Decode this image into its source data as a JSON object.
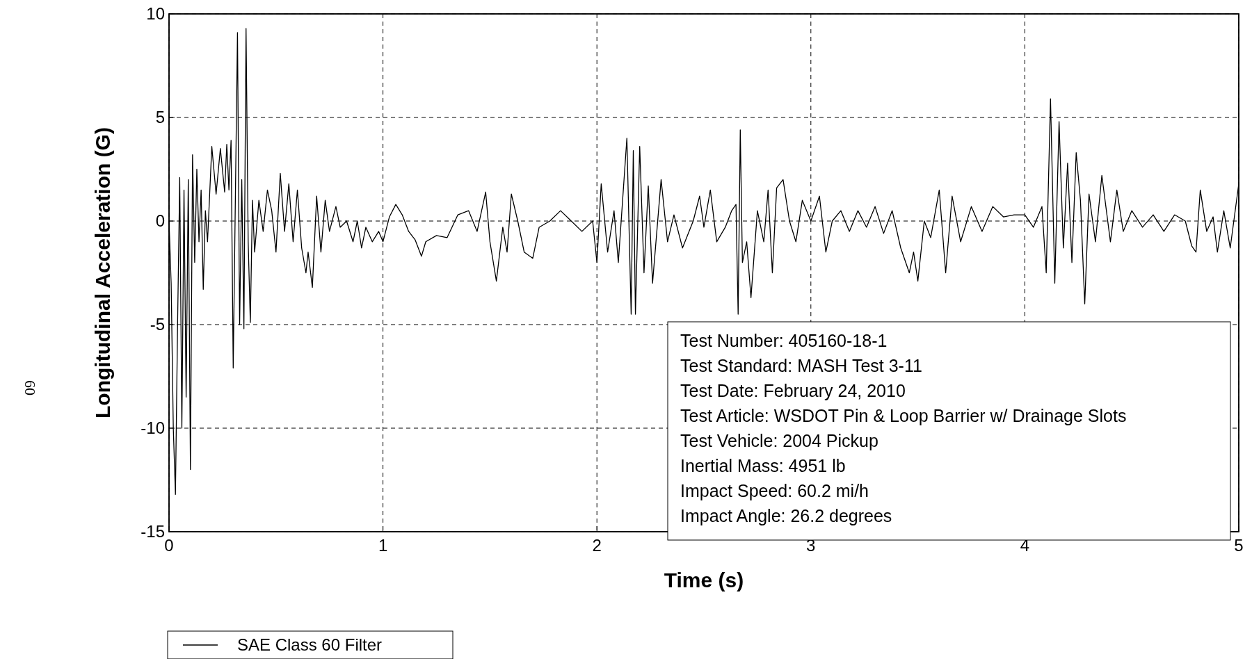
{
  "chart_data": {
    "type": "line",
    "xlabel": "Time (s)",
    "ylabel": "Longitudinal Acceleration (G)",
    "xlim": [
      0,
      5
    ],
    "xticks": [
      0,
      1,
      2,
      3,
      4,
      5
    ],
    "ylim": [
      -15,
      10
    ],
    "yticks": [
      -15,
      -10,
      -5,
      0,
      5,
      10
    ],
    "grid": true,
    "legend": "bottom",
    "line_style": "solid",
    "x": [
      0,
      0.01,
      0.02,
      0.03,
      0.04,
      0.05,
      0.06,
      0.07,
      0.08,
      0.09,
      0.1,
      0.11,
      0.12,
      0.13,
      0.14,
      0.15,
      0.16,
      0.17,
      0.18,
      0.2,
      0.22,
      0.24,
      0.26,
      0.27,
      0.28,
      0.29,
      0.3,
      0.31,
      0.32,
      0.33,
      0.34,
      0.35,
      0.36,
      0.37,
      0.38,
      0.39,
      0.4,
      0.42,
      0.44,
      0.46,
      0.48,
      0.5,
      0.52,
      0.54,
      0.56,
      0.58,
      0.6,
      0.62,
      0.64,
      0.65,
      0.67,
      0.69,
      0.71,
      0.73,
      0.75,
      0.78,
      0.8,
      0.83,
      0.86,
      0.88,
      0.9,
      0.92,
      0.95,
      0.98,
      1,
      1.03,
      1.06,
      1.09,
      1.12,
      1.15,
      1.18,
      1.2,
      1.25,
      1.3,
      1.35,
      1.4,
      1.44,
      1.48,
      1.5,
      1.53,
      1.56,
      1.58,
      1.6,
      1.63,
      1.66,
      1.7,
      1.73,
      1.78,
      1.83,
      1.88,
      1.93,
      1.98,
      2,
      2.02,
      2.05,
      2.08,
      2.1,
      2.12,
      2.14,
      2.16,
      2.17,
      2.18,
      2.2,
      2.22,
      2.24,
      2.26,
      2.3,
      2.33,
      2.36,
      2.4,
      2.45,
      2.48,
      2.5,
      2.53,
      2.56,
      2.6,
      2.63,
      2.65,
      2.66,
      2.67,
      2.68,
      2.7,
      2.72,
      2.75,
      2.78,
      2.8,
      2.82,
      2.84,
      2.87,
      2.9,
      2.93,
      2.96,
      3,
      3.04,
      3.07,
      3.1,
      3.14,
      3.18,
      3.22,
      3.26,
      3.3,
      3.34,
      3.38,
      3.42,
      3.46,
      3.48,
      3.5,
      3.53,
      3.56,
      3.6,
      3.63,
      3.66,
      3.7,
      3.75,
      3.8,
      3.85,
      3.9,
      3.95,
      4,
      4.04,
      4.08,
      4.1,
      4.12,
      4.14,
      4.16,
      4.18,
      4.2,
      4.22,
      4.24,
      4.26,
      4.28,
      4.3,
      4.33,
      4.36,
      4.4,
      4.43,
      4.46,
      4.5,
      4.55,
      4.6,
      4.65,
      4.7,
      4.75,
      4.78,
      4.8,
      4.82,
      4.85,
      4.88,
      4.9,
      4.93,
      4.96,
      5
    ],
    "series": [
      {
        "name": "SAE Class 60 Filter",
        "color": "#000000",
        "values": [
          0,
          -3,
          -10,
          -13.2,
          -5,
          2.1,
          -10,
          1.5,
          -8.5,
          2,
          -12,
          3.2,
          -2,
          2.5,
          -1,
          1.5,
          -3.3,
          0.5,
          -1,
          3.6,
          1.3,
          3.5,
          1.4,
          3.7,
          1.5,
          3.9,
          -7.1,
          1,
          9.1,
          -5,
          2,
          -5.2,
          9.3,
          -1,
          -4.9,
          1,
          -1.5,
          1,
          -0.5,
          1.5,
          0.5,
          -1.5,
          2.3,
          -0.5,
          1.8,
          -1,
          1.5,
          -1.3,
          -2.5,
          -1.5,
          -3.2,
          1.2,
          -1.5,
          1,
          -0.5,
          0.7,
          -0.3,
          0,
          -1,
          0,
          -1.3,
          -0.3,
          -1,
          -0.5,
          -1,
          0.2,
          0.8,
          0.3,
          -0.5,
          -0.9,
          -1.7,
          -1,
          -0.7,
          -0.8,
          0.3,
          0.5,
          -0.5,
          1.4,
          -1,
          -2.9,
          -0.3,
          -1.5,
          1.3,
          0,
          -1.5,
          -1.8,
          -0.3,
          0,
          0.5,
          0,
          -0.5,
          0,
          -2,
          1.8,
          -1.5,
          0.5,
          -2,
          1,
          4,
          -4.5,
          3.4,
          -4.5,
          3.6,
          -2.5,
          1.7,
          -3,
          2,
          -1,
          0.3,
          -1.3,
          0,
          1.2,
          -0.3,
          1.5,
          -1,
          -0.3,
          0.5,
          0.8,
          -4.5,
          4.4,
          -2,
          -1,
          -3.7,
          0.5,
          -1,
          1.5,
          -2.5,
          1.6,
          2,
          0,
          -1,
          1,
          0,
          1.2,
          -1.5,
          0,
          0.5,
          -0.5,
          0.5,
          -0.3,
          0.7,
          -0.6,
          0.5,
          -1.3,
          -2.5,
          -1.5,
          -2.9,
          0,
          -0.8,
          1.5,
          -2.5,
          1.2,
          -1,
          0.7,
          -0.5,
          0.7,
          0.2,
          0.3,
          0.3,
          -0.3,
          0.7,
          -2.5,
          5.9,
          -3,
          4.8,
          -1.3,
          2.8,
          -2,
          3.3,
          1,
          -4,
          1.3,
          -1,
          2.2,
          -1,
          1.5,
          -0.5,
          0.5,
          -0.3,
          0.3,
          -0.5,
          0.3,
          0,
          -1.2,
          -1.5,
          1.5,
          -0.5,
          0.2,
          -1.5,
          0.5,
          -1.3,
          1.8
        ]
      }
    ],
    "annotations": [
      "Test Number: 405160-18-1",
      "Test Standard: MASH Test 3-11",
      "Test Date: February 24, 2010",
      "Test Article: WSDOT Pin & Loop Barrier w/ Drainage Slots",
      "Test Vehicle: 2004 Pickup",
      "Inertial Mass: 4951 lb",
      "Impact Speed: 60.2 mi/h",
      "Impact Angle: 26.2 degrees",
      "60"
    ]
  }
}
